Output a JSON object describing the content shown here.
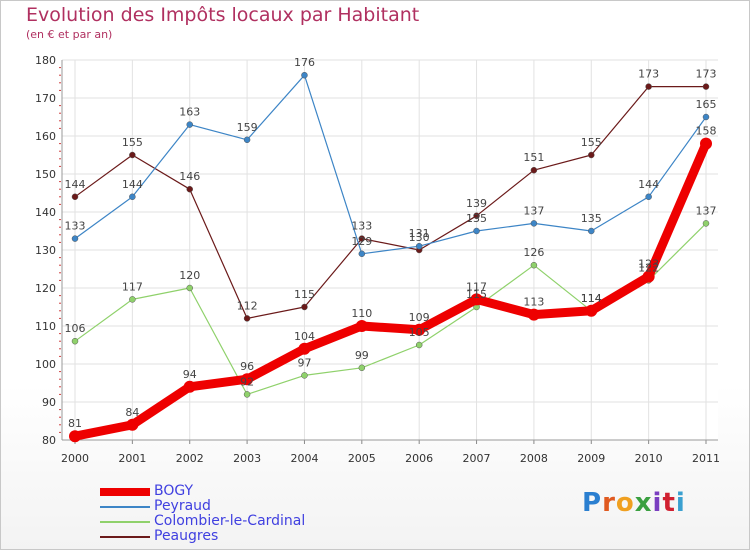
{
  "header": {
    "title": "Evolution des Impôts locaux par Habitant",
    "subtitle": "(en € et par an)"
  },
  "logo": {
    "text": "Proxiti"
  },
  "chart_data": {
    "type": "line",
    "title": "Evolution des Impôts locaux par Habitant",
    "subtitle": "(en € et par an)",
    "xlabel": "",
    "ylabel": "",
    "x": [
      "2000",
      "2001",
      "2002",
      "2003",
      "2004",
      "2005",
      "2006",
      "2007",
      "2008",
      "2009",
      "2010",
      "2011"
    ],
    "ylim": [
      80,
      180
    ],
    "yticks": [
      80,
      90,
      100,
      110,
      120,
      130,
      140,
      150,
      160,
      170,
      180
    ],
    "grid": true,
    "legend_position": "bottom-left",
    "series": [
      {
        "name": "BOGY",
        "color": "#ee0000",
        "values": [
          81,
          84,
          94,
          96,
          104,
          110,
          109,
          117,
          113,
          114,
          123,
          158
        ]
      },
      {
        "name": "Peyraud",
        "color": "#3d85c6",
        "values": [
          133,
          144,
          163,
          159,
          176,
          129,
          131,
          135,
          137,
          135,
          144,
          165
        ]
      },
      {
        "name": "Colombier-le-Cardinal",
        "color": "#8fd16b",
        "values": [
          106,
          117,
          120,
          92,
          97,
          99,
          105,
          115,
          126,
          114,
          122,
          137
        ]
      },
      {
        "name": "Peaugres",
        "color": "#6b1a1a",
        "values": [
          144,
          155,
          146,
          112,
          115,
          133,
          130,
          139,
          151,
          155,
          173,
          173
        ]
      }
    ]
  }
}
